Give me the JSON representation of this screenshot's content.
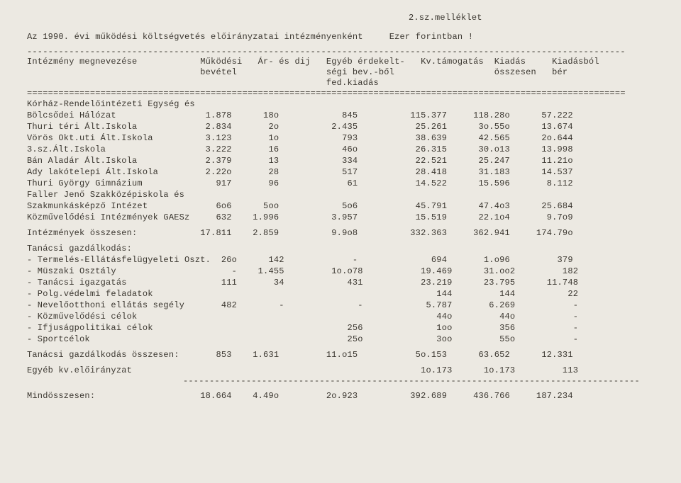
{
  "annex": "2.sz.melléklet",
  "titleLeft": "Az 1990. évi működési költségvetés előirányzatai intézményenként",
  "titleRight": "Ezer forintban !",
  "dashes": "------------------------------------------------------------------------------------------------------------------",
  "eqdashes": "==================================================================================================================",
  "header1": "Intézmény megnevezése            Működési   Ár- és dij   Egyéb érdekelt-   Kv.támogatás  Kiadás     Kiadásból",
  "header2": "                                 bevétel                 ségi bev.-ből                   összesen   bér",
  "header3": "                                                         fed.kiadás",
  "rows": [
    "Kórház-Rendelőintézeti Egység és",
    "Bölcsődei Hálózat                 1.878      18o            845          115.377     118.28o      57.222",
    "Thuri téri Ált.Iskola             2.834       2o          2.435           25.261      3o.55o      13.674",
    "Vörös Okt.uti Ált.Iskola          3.123       1o            793           38.639      42.565      2o.644",
    "3.sz.Ált.Iskola                   3.222       16            46o           26.315      30.o13      13.998",
    "Bán Aladár Ált.Iskola             2.379       13            334           22.521      25.247      11.21o",
    "Ady lakótelepi Ált.Iskola         2.22o       28            517           28.418      31.183      14.537",
    "Thuri György Gimnázium              917       96             61           14.522      15.596       8.112",
    "Faller Jenő Szakközépiskola és",
    "Szakmunkásképző Intézet             6o6      5oo            5o6           45.791      47.4o3      25.684",
    "Közművelődési Intézmények GAESz     632    1.996          3.957           15.519      22.1o4       9.7o9"
  ],
  "instTotal": "Intézmények összesen:            17.811    2.859          9.9o8          332.363     362.941     174.79o",
  "tanHeader": "Tanácsi gazdálkodás:",
  "tanRows": [
    "- Termelés-Ellátásfelügyeleti Oszt.  26o      142             -              694       1.o96         379",
    "- Müszaki Osztály                      -    1.455         1o.o78           19.469      31.oo2         182",
    "- Tanácsi igazgatás                  111       34            431           23.219      23.795      11.748",
    "- Polg.védelmi feladatok                                                      144         144          22",
    "- Nevelőotthoni ellátás segély       482        -              -            5.787       6.269           -",
    "- Közművelődési célok                                                         44o         44o           -",
    "- Ifjuságpolitikai célok                                     256              1oo         356           -",
    "- Sportcélok                                                 25o              3oo         55o           -"
  ],
  "tanTotal": "Tanácsi gazdálkodás összesen:       853    1.631         11.o15           5o.153      63.652      12.331",
  "egyeb": "Egyéb kv.előirányzat                                                       1o.173      1o.173         113",
  "mind": "Mindösszesen:                    18.664    4.49o         2o.923          392.689     436.766     187.234"
}
